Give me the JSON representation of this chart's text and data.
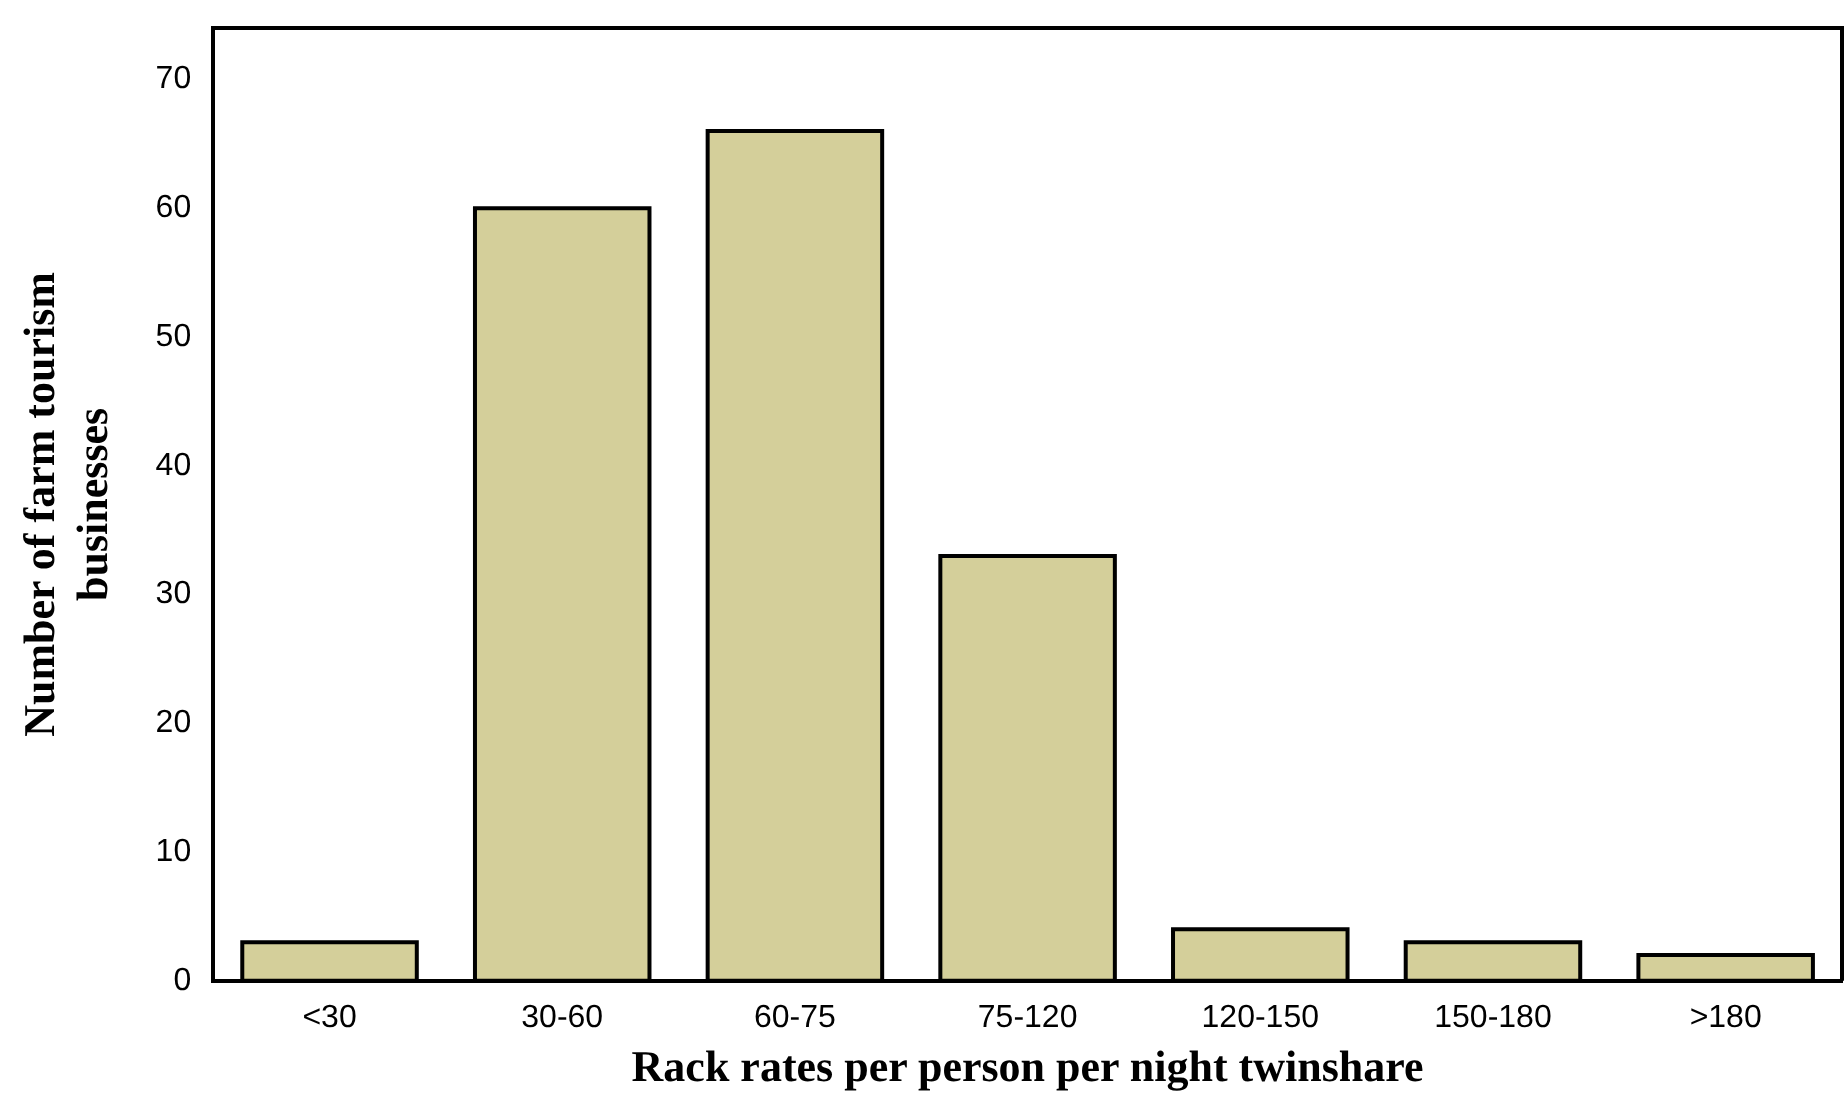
{
  "chart_data": {
    "type": "bar",
    "xlabel": "Rack rates per person per night twinshare",
    "ylabel": "Number of farm tourism businesses",
    "categories": [
      "<30",
      "30-60",
      "60-75",
      "75-120",
      "120-150",
      "150-180",
      ">180"
    ],
    "values": [
      3,
      60,
      66,
      33,
      4,
      3,
      2
    ],
    "color": "#d4cf9a",
    "ylim": [
      0,
      74
    ],
    "yticks": [
      0,
      10,
      20,
      30,
      40,
      50,
      60,
      70
    ],
    "grid": false,
    "legend": false
  }
}
